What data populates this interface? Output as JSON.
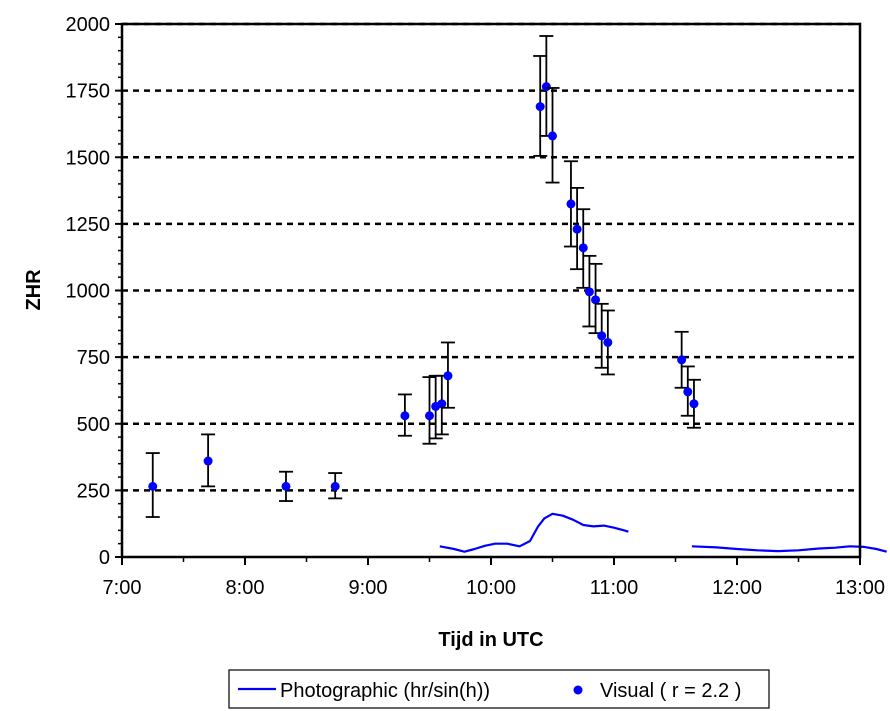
{
  "chart_data": {
    "type": "scatter",
    "xlabel": "Tijd in UTC",
    "ylabel": "ZHR",
    "xlim": [
      "7:00",
      "13:00"
    ],
    "ylim": [
      0,
      2000
    ],
    "x_ticks": [
      "7:00",
      "8:00",
      "9:00",
      "10:00",
      "11:00",
      "12:00",
      "13:00"
    ],
    "y_ticks": [
      "0",
      "250",
      "500",
      "750",
      "1000",
      "1250",
      "1500",
      "1750",
      "2000"
    ],
    "grid": "horizontal dashed",
    "legend_position": "bottom",
    "series": [
      {
        "name": "Photographic (hr/sin(h))",
        "kind": "line",
        "color": "#0000ff",
        "segments": [
          [
            {
              "x": "9:35",
              "y": 40
            },
            {
              "x": "9:42",
              "y": 30
            },
            {
              "x": "9:47",
              "y": 20
            },
            {
              "x": "9:52",
              "y": 30
            },
            {
              "x": "9:57",
              "y": 42
            },
            {
              "x": "10:02",
              "y": 50
            },
            {
              "x": "10:08",
              "y": 50
            },
            {
              "x": "10:14",
              "y": 40
            },
            {
              "x": "10:19",
              "y": 60
            },
            {
              "x": "10:23",
              "y": 115
            },
            {
              "x": "10:26",
              "y": 145
            },
            {
              "x": "10:30",
              "y": 162
            },
            {
              "x": "10:35",
              "y": 155
            },
            {
              "x": "10:40",
              "y": 140
            },
            {
              "x": "10:45",
              "y": 120
            },
            {
              "x": "10:50",
              "y": 115
            },
            {
              "x": "10:55",
              "y": 118
            },
            {
              "x": "11:00",
              "y": 110
            },
            {
              "x": "11:05",
              "y": 100
            },
            {
              "x": "11:07",
              "y": 95
            }
          ],
          [
            {
              "x": "11:38",
              "y": 40
            },
            {
              "x": "11:50",
              "y": 36
            },
            {
              "x": "12:00",
              "y": 30
            },
            {
              "x": "12:10",
              "y": 25
            },
            {
              "x": "12:20",
              "y": 22
            },
            {
              "x": "12:30",
              "y": 25
            },
            {
              "x": "12:40",
              "y": 32
            },
            {
              "x": "12:48",
              "y": 35
            },
            {
              "x": "12:55",
              "y": 40
            },
            {
              "x": "13:02",
              "y": 38
            },
            {
              "x": "13:08",
              "y": 30
            },
            {
              "x": "13:13",
              "y": 20
            }
          ]
        ]
      },
      {
        "name": "Visual ( r = 2.2 )",
        "kind": "scatter_errorbar",
        "color": "#0000ff",
        "points": [
          {
            "x": "7:15",
            "y": 265,
            "lo": 150,
            "hi": 390
          },
          {
            "x": "7:42",
            "y": 360,
            "lo": 265,
            "hi": 460
          },
          {
            "x": "8:20",
            "y": 265,
            "lo": 210,
            "hi": 320
          },
          {
            "x": "8:44",
            "y": 265,
            "lo": 220,
            "hi": 315
          },
          {
            "x": "9:18",
            "y": 530,
            "lo": 455,
            "hi": 610
          },
          {
            "x": "9:30",
            "y": 530,
            "lo": 425,
            "hi": 675
          },
          {
            "x": "9:33",
            "y": 565,
            "lo": 445,
            "hi": 680
          },
          {
            "x": "9:36",
            "y": 575,
            "lo": 460,
            "hi": 680
          },
          {
            "x": "9:39",
            "y": 680,
            "lo": 560,
            "hi": 805
          },
          {
            "x": "10:24",
            "y": 1690,
            "lo": 1505,
            "hi": 1880
          },
          {
            "x": "10:27",
            "y": 1765,
            "lo": 1580,
            "hi": 1955
          },
          {
            "x": "10:30",
            "y": 1580,
            "lo": 1405,
            "hi": 1760
          },
          {
            "x": "10:39",
            "y": 1325,
            "lo": 1165,
            "hi": 1485
          },
          {
            "x": "10:42",
            "y": 1230,
            "lo": 1080,
            "hi": 1385
          },
          {
            "x": "10:45",
            "y": 1160,
            "lo": 1010,
            "hi": 1305
          },
          {
            "x": "10:48",
            "y": 995,
            "lo": 865,
            "hi": 1130
          },
          {
            "x": "10:51",
            "y": 965,
            "lo": 840,
            "hi": 1100
          },
          {
            "x": "10:54",
            "y": 830,
            "lo": 710,
            "hi": 950
          },
          {
            "x": "10:57",
            "y": 805,
            "lo": 685,
            "hi": 925
          },
          {
            "x": "11:33",
            "y": 740,
            "lo": 635,
            "hi": 845
          },
          {
            "x": "11:36",
            "y": 620,
            "lo": 530,
            "hi": 715
          },
          {
            "x": "11:39",
            "y": 575,
            "lo": 485,
            "hi": 665
          }
        ]
      }
    ]
  }
}
